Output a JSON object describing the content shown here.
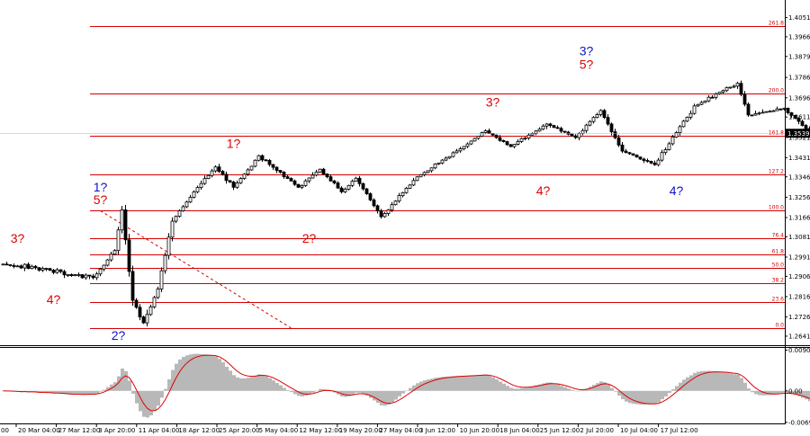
{
  "chart_data": [
    {
      "type": "candlestick",
      "title": "",
      "price_scale": {
        "ylim": [
          1.2605,
          1.4105
        ],
        "ticks": [
          "1.4051",
          "1.3966",
          "1.3879",
          "1.3786",
          "1.3696",
          "1.3611",
          "1.3521",
          "1.3431",
          "1.3346",
          "1.3256",
          "1.3166",
          "1.3081",
          "1.2991",
          "1.2906",
          "1.2816",
          "1.2726",
          "1.2641"
        ]
      },
      "current_price": "1.3539",
      "x_ticks": [
        "20 Mar 04:00",
        "27 Mar 12:00",
        "3 Apr 20:00",
        "11 Apr 04:00",
        "18 Apr 12:00",
        "25 Apr 20:00",
        "5 May 04:00",
        "12 May 12:00",
        "19 May 20:00",
        "27 May 04:00",
        "3 Jun 12:00",
        "10 Jun 20:00",
        "18 Jun 04:00",
        "25 Jun 12:00",
        "2 Jul 20:00",
        "10 Jul 04:00",
        "17 Jul 12:00"
      ],
      "x_tick_first_partial": "00",
      "fib_levels": [
        {
          "label": "261.8",
          "price": 1.4012
        },
        {
          "label": "200.0",
          "price": 1.3716
        },
        {
          "label": "161.8",
          "price": 1.3528
        },
        {
          "label": "127.2",
          "price": 1.3358
        },
        {
          "label": "100.0",
          "price": 1.3196
        },
        {
          "label": "76.4",
          "price": 1.3075
        },
        {
          "label": "61.8",
          "price": 1.3001
        },
        {
          "label": "50.0",
          "price": 1.2945
        },
        {
          "label": "38.2",
          "price": 1.2876
        },
        {
          "label": "23.6",
          "price": 1.2791
        },
        {
          "label": "0.0",
          "price": 1.2677
        }
      ],
      "wave_labels": [
        {
          "text": "3?",
          "color": "#e00000",
          "anchor": 4,
          "price": 1.3055
        },
        {
          "text": "4?",
          "color": "#e00000",
          "anchor": 14,
          "price": 1.2785
        },
        {
          "text": "1?",
          "color": "#1010cc",
          "anchor": 27,
          "price": 1.3282
        },
        {
          "text": "5?",
          "color": "#e00000",
          "anchor": 27,
          "price": 1.3225
        },
        {
          "text": "2?",
          "color": "#1010cc",
          "anchor": 32,
          "price": 1.2625
        },
        {
          "text": "1?",
          "color": "#e00000",
          "anchor": 64,
          "price": 1.3475
        },
        {
          "text": "2?",
          "color": "#e00000",
          "anchor": 85,
          "price": 1.3055
        },
        {
          "text": "3?",
          "color": "#e00000",
          "anchor": 136,
          "price": 1.3658
        },
        {
          "text": "4?",
          "color": "#e00000",
          "anchor": 150,
          "price": 1.3265
        },
        {
          "text": "3?",
          "color": "#1010cc",
          "anchor": 162,
          "price": 1.3885
        },
        {
          "text": "5?",
          "color": "#e00000",
          "anchor": 162,
          "price": 1.3825
        },
        {
          "text": "4?",
          "color": "#1010cc",
          "anchor": 187,
          "price": 1.3265
        }
      ],
      "trend_line": {
        "from_anchor": 27,
        "from_price": 1.3196,
        "to_anchor": 80,
        "to_price": 1.2677
      }
    },
    {
      "type": "histogram+line",
      "title": "",
      "ylim": [
        -0.007,
        0.0093
      ],
      "ticks": [
        "0.00901",
        "0.00",
        "-0.00697"
      ]
    }
  ],
  "colors": {
    "candle": "#000000",
    "fib": "#d40000",
    "signal": "#e00000",
    "hist": "#b8b8b8",
    "price_box": "#000000"
  },
  "segments": [
    [
      1.296,
      30,
      40
    ],
    [
      1.29,
      25,
      40
    ],
    [
      1.302,
      6,
      28
    ],
    [
      1.32,
      2,
      12
    ],
    [
      1.28,
      3,
      30
    ],
    [
      1.27,
      3,
      30
    ],
    [
      1.285,
      4,
      16
    ],
    [
      1.315,
      4,
      20
    ],
    [
      1.328,
      6,
      16
    ],
    [
      1.339,
      6,
      14
    ],
    [
      1.33,
      5,
      14
    ],
    [
      1.344,
      7,
      16
    ],
    [
      1.33,
      11,
      16
    ],
    [
      1.338,
      6,
      14
    ],
    [
      1.328,
      6,
      14
    ],
    [
      1.334,
      4,
      14
    ],
    [
      1.317,
      7,
      16
    ],
    [
      1.333,
      9,
      16
    ],
    [
      1.347,
      13,
      16
    ],
    [
      1.355,
      7,
      14
    ],
    [
      1.348,
      7,
      14
    ],
    [
      1.358,
      10,
      16
    ],
    [
      1.352,
      8,
      14
    ],
    [
      1.364,
      7,
      16
    ],
    [
      1.346,
      6,
      18
    ],
    [
      1.34,
      9,
      14
    ],
    [
      1.366,
      11,
      18
    ],
    [
      1.376,
      12,
      16
    ],
    [
      1.362,
      3,
      18
    ],
    [
      1.365,
      10,
      14
    ],
    [
      1.356,
      6,
      14
    ],
    [
      1.343,
      6,
      14
    ],
    [
      1.339,
      7,
      12
    ],
    [
      1.347,
      6,
      12
    ],
    [
      1.359,
      8,
      12
    ],
    [
      1.3545,
      2,
      10
    ]
  ]
}
